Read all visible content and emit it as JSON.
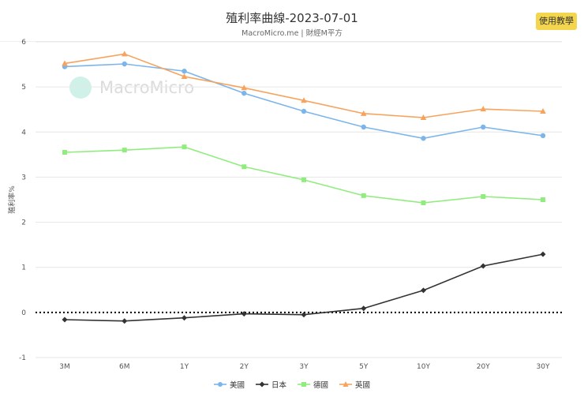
{
  "header": {
    "title": "殖利率曲線-2023-07-01",
    "subtitle": "MacroMicro.me | 財經M平方",
    "help_button": "使用教學"
  },
  "watermark": "MacroMicro",
  "chart_data": {
    "type": "line",
    "title": "殖利率曲線-2023-07-01",
    "ylabel": "殖利率%",
    "xlabel": "",
    "ylim": [
      -1,
      6
    ],
    "yticks": [
      -1,
      0,
      1,
      2,
      3,
      4,
      5,
      6
    ],
    "grid": true,
    "legend": "bottom",
    "zero_line": "dotted",
    "categories": [
      "3M",
      "6M",
      "1Y",
      "2Y",
      "3Y",
      "5Y",
      "10Y",
      "20Y",
      "30Y"
    ],
    "series": [
      {
        "name": "美國",
        "color": "#7cb5ec",
        "marker": "circle",
        "values": [
          5.45,
          5.51,
          5.35,
          4.86,
          4.46,
          4.11,
          3.86,
          4.11,
          3.92
        ]
      },
      {
        "name": "日本",
        "color": "#333333",
        "marker": "diamond",
        "values": [
          -0.16,
          -0.19,
          -0.12,
          -0.03,
          -0.05,
          0.09,
          0.49,
          1.03,
          1.29
        ]
      },
      {
        "name": "德國",
        "color": "#90ed7d",
        "marker": "square",
        "values": [
          3.55,
          3.6,
          3.67,
          3.23,
          2.94,
          2.59,
          2.43,
          2.57,
          2.5
        ]
      },
      {
        "name": "英國",
        "color": "#f7a35c",
        "marker": "triangle",
        "values": [
          5.52,
          5.73,
          5.23,
          4.98,
          4.7,
          4.41,
          4.32,
          4.51,
          4.46
        ]
      }
    ]
  }
}
